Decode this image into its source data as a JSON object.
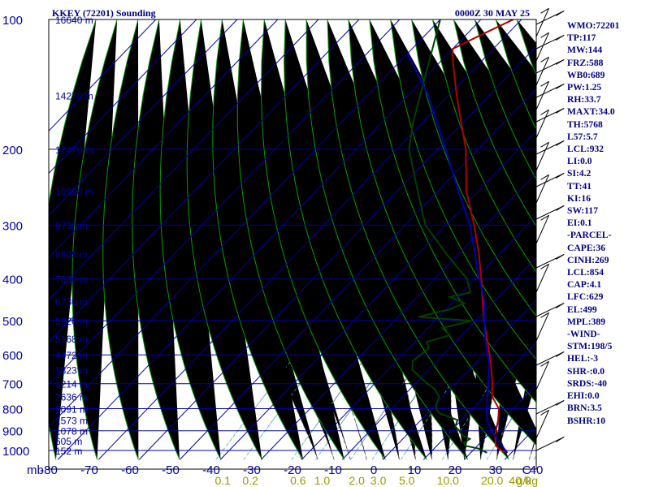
{
  "title": "KKEY (72201) Sounding",
  "time_label": "0000Z 30 MAY 25",
  "indices": [
    "WMO:72201",
    "TP:117",
    "MW:144",
    "FRZ:588",
    "WB0:689",
    "PW:1.25",
    "RH:33.7",
    "MAXT:34.0",
    "TH:5768",
    "L57:5.7",
    "LCL:932",
    "LI:0.0",
    "SI:4.2",
    "TT:41",
    "KI:16",
    "SW:117",
    "EI:0.1",
    "-PARCEL-",
    "CAPE:36",
    "CINH:269",
    "LCL:854",
    "CAP:4.1",
    "LFC:629",
    "EL:499",
    "MPL:389",
    "-WIND-",
    "STM:198/5",
    "HEL:-3",
    "SHR-:0.0",
    "SRDS:-40",
    "EHI:0.0",
    "BRN:3.5",
    "BSHR:10"
  ],
  "colors": {
    "temperature": "#b00000",
    "dewpoint": "#004000",
    "parcel": "#0000b0",
    "grid": "#0000aa",
    "dry_adiabat": "#00a000",
    "mixing_ratio": "#44aadd"
  },
  "chart_data": {
    "type": "line",
    "title": "KKEY (72201) Sounding",
    "subtitle": "0000Z 30 MAY 25",
    "xlabel": "",
    "ylabel": "mb",
    "x_unit_label": "C",
    "y_scale": "log (pressure)",
    "ylim": [
      1000,
      100
    ],
    "xlim": [
      -80,
      40
    ],
    "pressure_ticks": [
      100,
      200,
      300,
      400,
      500,
      600,
      700,
      800,
      900,
      1000
    ],
    "pressure_tick_labels": [
      "100",
      "200",
      "300",
      "400",
      "500",
      "600",
      "700",
      "800",
      "900",
      "1000"
    ],
    "temperature_ticks": [
      -80,
      -70,
      -60,
      -50,
      -40,
      -30,
      -20,
      -10,
      0,
      10,
      20,
      30,
      40
    ],
    "temperature_tick_labels": [
      "-80",
      "-70",
      "-60",
      "-50",
      "-40",
      "-30",
      "-20",
      "-10",
      "0",
      "10",
      "20",
      "30",
      "40"
    ],
    "mixing_ratio_labels": [
      "0.1",
      "0.2",
      "0.6",
      "1.0",
      "2.0",
      "3.0",
      "5.0",
      "10.0",
      "20.0",
      "40.0"
    ],
    "mixing_ratio_unit": "g/kg",
    "height_labels": [
      {
        "p": 100,
        "label": "16640 m"
      },
      {
        "p": 150,
        "label": "14270 m"
      },
      {
        "p": 200,
        "label": "12470 m"
      },
      {
        "p": 250,
        "label": "10990 m"
      },
      {
        "p": 300,
        "label": "9730 m"
      },
      {
        "p": 350,
        "label": "8605 m"
      },
      {
        "p": 400,
        "label": "7630 m"
      },
      {
        "p": 450,
        "label": "6730 m"
      },
      {
        "p": 500,
        "label": "5920 m"
      },
      {
        "p": 550,
        "label": "5168 m"
      },
      {
        "p": 600,
        "label": "4472 m"
      },
      {
        "p": 650,
        "label": "3823 m"
      },
      {
        "p": 700,
        "label": "3214 m"
      },
      {
        "p": 750,
        "label": "2636 m"
      },
      {
        "p": 800,
        "label": "2091 m"
      },
      {
        "p": 850,
        "label": "1573 m"
      },
      {
        "p": 900,
        "label": "1078 m"
      },
      {
        "p": 950,
        "label": "605 m"
      },
      {
        "p": 1000,
        "label": "152 m"
      }
    ],
    "grid": true,
    "series": [
      {
        "name": "",
        "kind": "temperature",
        "points": [
          {
            "p": 1012,
            "t": 29.0
          },
          {
            "p": 1000,
            "t": 27.0
          },
          {
            "p": 975,
            "t": 24.5
          },
          {
            "p": 925,
            "t": 22.0
          },
          {
            "p": 850,
            "t": 19.0
          },
          {
            "p": 800,
            "t": 16.5
          },
          {
            "p": 750,
            "t": 12.0
          },
          {
            "p": 700,
            "t": 9.0
          },
          {
            "p": 650,
            "t": 5.5
          },
          {
            "p": 600,
            "t": 1.5
          },
          {
            "p": 550,
            "t": -3.0
          },
          {
            "p": 500,
            "t": -8.0
          },
          {
            "p": 450,
            "t": -13.0
          },
          {
            "p": 400,
            "t": -18.5
          },
          {
            "p": 350,
            "t": -25.0
          },
          {
            "p": 300,
            "t": -33.0
          },
          {
            "p": 250,
            "t": -43.0
          },
          {
            "p": 200,
            "t": -53.0
          },
          {
            "p": 175,
            "t": -60.0
          },
          {
            "p": 150,
            "t": -68.0
          },
          {
            "p": 125,
            "t": -77.0
          },
          {
            "p": 117,
            "t": -80.0
          },
          {
            "p": 108,
            "t": -76.0
          },
          {
            "p": 100,
            "t": -72.0
          }
        ]
      },
      {
        "name": "",
        "kind": "dewpoint",
        "points": [
          {
            "p": 1012,
            "t": 24.0
          },
          {
            "p": 990,
            "t": 21.0
          },
          {
            "p": 975,
            "t": 17.0
          },
          {
            "p": 960,
            "t": 16.0
          },
          {
            "p": 940,
            "t": 16.5
          },
          {
            "p": 925,
            "t": 14.0
          },
          {
            "p": 900,
            "t": 12.0
          },
          {
            "p": 880,
            "t": 10.0
          },
          {
            "p": 850,
            "t": 9.0
          },
          {
            "p": 820,
            "t": 3.0
          },
          {
            "p": 800,
            "t": 1.0
          },
          {
            "p": 780,
            "t": 0.0
          },
          {
            "p": 750,
            "t": -1.0
          },
          {
            "p": 720,
            "t": -4.0
          },
          {
            "p": 700,
            "t": -7.0
          },
          {
            "p": 650,
            "t": -14.0
          },
          {
            "p": 620,
            "t": -16.0
          },
          {
            "p": 600,
            "t": -15.5
          },
          {
            "p": 580,
            "t": -15.0
          },
          {
            "p": 560,
            "t": -17.0
          },
          {
            "p": 540,
            "t": -13.0
          },
          {
            "p": 520,
            "t": -16.5
          },
          {
            "p": 500,
            "t": -11.0
          },
          {
            "p": 490,
            "t": -25.0
          },
          {
            "p": 470,
            "t": -19.0
          },
          {
            "p": 455,
            "t": -17.0
          },
          {
            "p": 440,
            "t": -22.0
          },
          {
            "p": 430,
            "t": -18.0
          },
          {
            "p": 400,
            "t": -22.0
          },
          {
            "p": 350,
            "t": -33.0
          },
          {
            "p": 300,
            "t": -45.0
          },
          {
            "p": 250,
            "t": -55.0
          },
          {
            "p": 200,
            "t": -67.0
          },
          {
            "p": 175,
            "t": -72.0
          },
          {
            "p": 150,
            "t": -77.0
          },
          {
            "p": 100,
            "t": -90.0
          }
        ]
      },
      {
        "name": "",
        "kind": "parcel",
        "points": [
          {
            "p": 1012,
            "t": 29.0
          },
          {
            "p": 950,
            "t": 24.0
          },
          {
            "p": 900,
            "t": 20.0
          },
          {
            "p": 854,
            "t": 16.5
          },
          {
            "p": 800,
            "t": 13.5
          },
          {
            "p": 700,
            "t": 8.0
          },
          {
            "p": 629,
            "t": 3.5
          },
          {
            "p": 600,
            "t": 1.0
          },
          {
            "p": 550,
            "t": -3.5
          },
          {
            "p": 499,
            "t": -8.0
          },
          {
            "p": 450,
            "t": -12.5
          },
          {
            "p": 400,
            "t": -19.0
          },
          {
            "p": 389,
            "t": -20.5
          },
          {
            "p": 350,
            "t": -26.0
          },
          {
            "p": 300,
            "t": -34.0
          },
          {
            "p": 250,
            "t": -45.0
          },
          {
            "p": 200,
            "t": -58.0
          },
          {
            "p": 150,
            "t": -75.0
          },
          {
            "p": 120,
            "t": -90.0
          }
        ]
      }
    ]
  }
}
